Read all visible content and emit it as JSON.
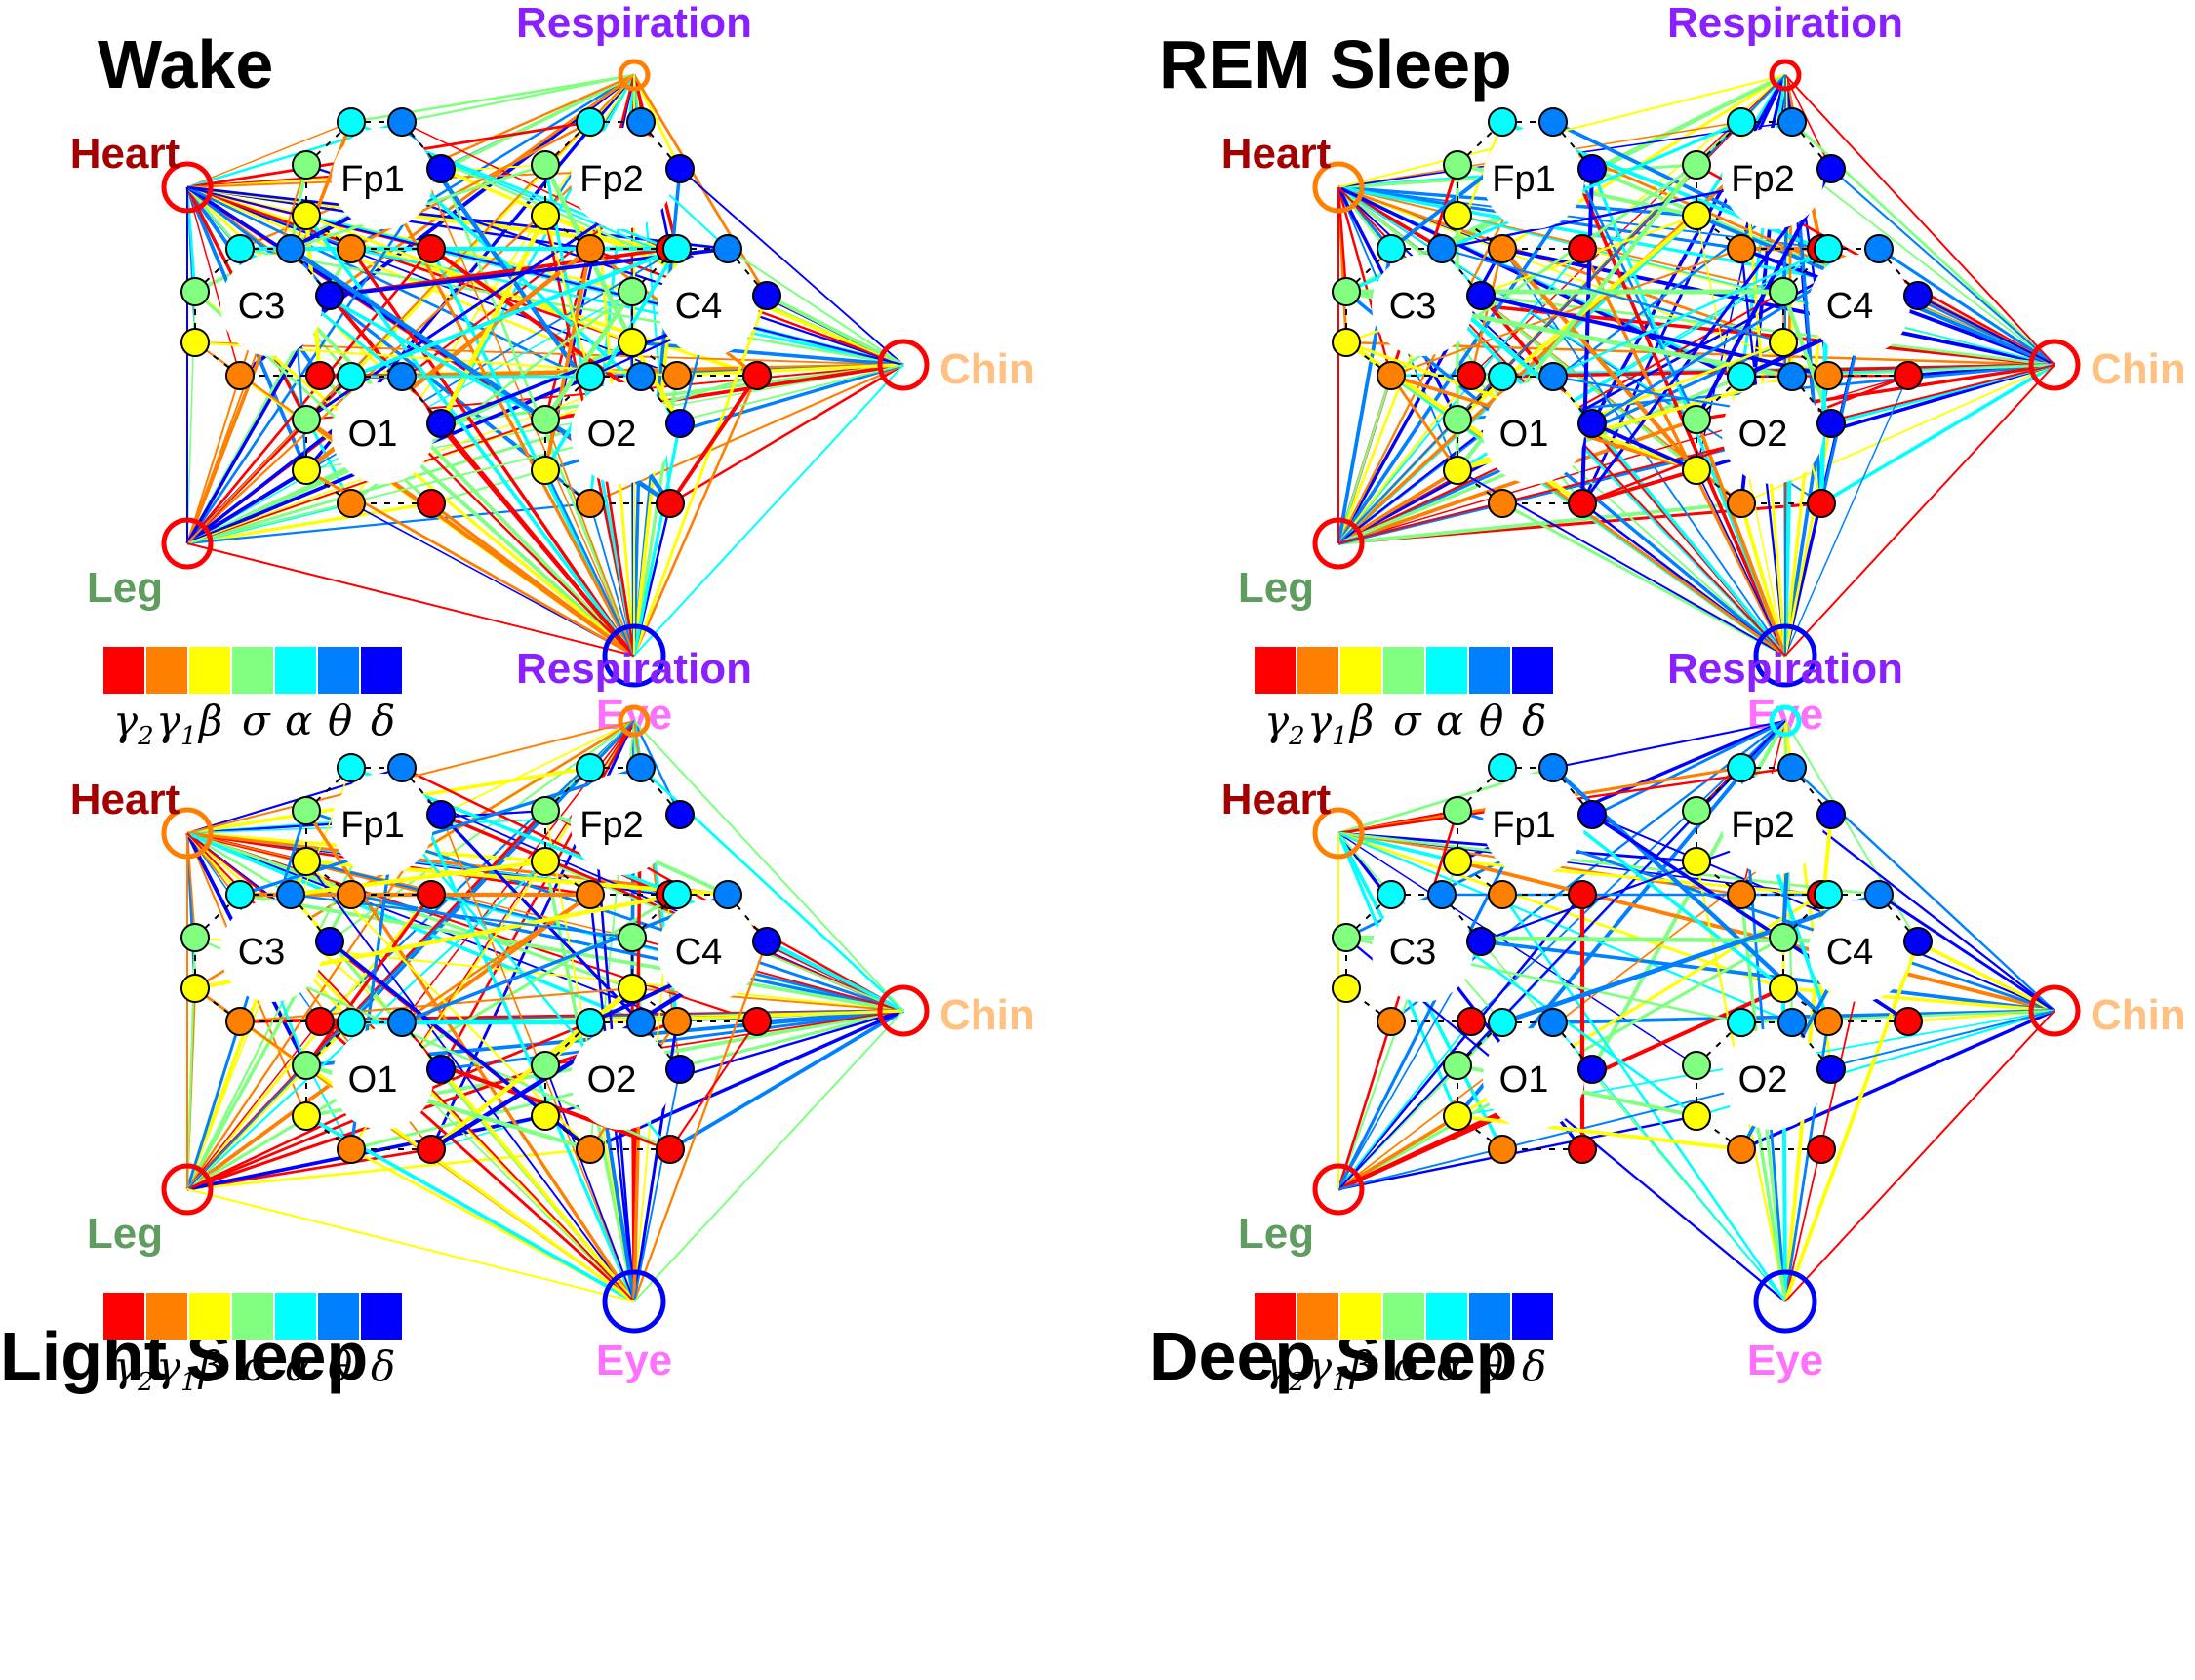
{
  "bands": [
    {
      "symbol": "γ",
      "sub": "2",
      "color": "#ff0000"
    },
    {
      "symbol": "γ",
      "sub": "1",
      "color": "#ff8000"
    },
    {
      "symbol": "β",
      "sub": "",
      "color": "#ffff00"
    },
    {
      "symbol": "σ",
      "sub": "",
      "color": "#80ff80"
    },
    {
      "symbol": "α",
      "sub": "",
      "color": "#00ffff"
    },
    {
      "symbol": "θ",
      "sub": "",
      "color": "#0080ff"
    },
    {
      "symbol": "δ",
      "sub": "",
      "color": "#0000ff"
    }
  ],
  "channels": [
    "Fp1",
    "Fp2",
    "C3",
    "C4",
    "O1",
    "O2"
  ],
  "organs": [
    {
      "key": "respiration",
      "label": "Respiration",
      "color": "#8a1fff"
    },
    {
      "key": "heart",
      "label": "Heart",
      "color": "#a30000"
    },
    {
      "key": "chin",
      "label": "Chin",
      "color": "#ffc080"
    },
    {
      "key": "leg",
      "label": "Leg",
      "color": "#5f9c5f"
    },
    {
      "key": "eye",
      "label": "Eye",
      "color": "#ff70ff"
    }
  ],
  "panels": [
    {
      "title": "Wake",
      "density": 1.0,
      "organ_ring_colors": {
        "respiration": "#ff8000",
        "heart": "#ff0000",
        "chin": "#ff0000",
        "leg": "#ff0000",
        "eye": "#0000ff"
      }
    },
    {
      "title": "REM Sleep",
      "density": 0.85,
      "organ_ring_colors": {
        "respiration": "#ff0000",
        "heart": "#ff8000",
        "chin": "#ff0000",
        "leg": "#ff0000",
        "eye": "#0000ff"
      }
    },
    {
      "title": "Light Sleep",
      "density": 0.95,
      "organ_ring_colors": {
        "respiration": "#ff8000",
        "heart": "#ff8000",
        "chin": "#ff0000",
        "leg": "#ff0000",
        "eye": "#0000ff"
      }
    },
    {
      "title": "Deep Sleep",
      "density": 0.45,
      "organ_ring_colors": {
        "respiration": "#00ffff",
        "heart": "#ff8000",
        "chin": "#ff0000",
        "leg": "#ff0000",
        "eye": "#0000ff"
      }
    }
  ]
}
